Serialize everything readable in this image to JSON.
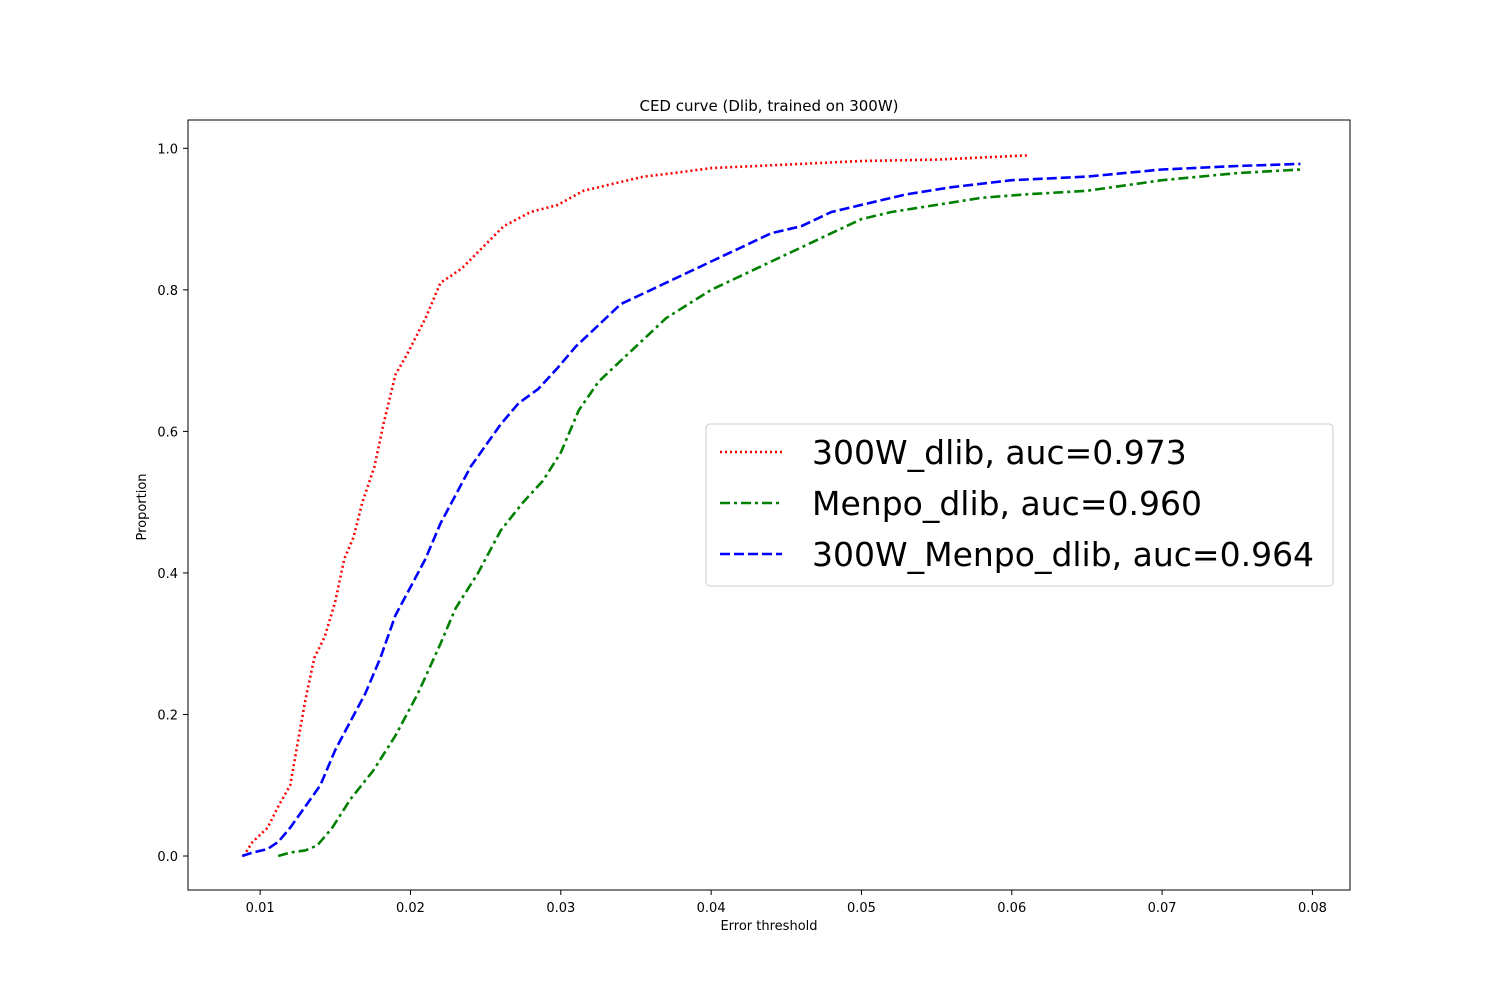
{
  "chart_data": {
    "type": "line",
    "title": "CED curve (Dlib, trained on 300W)",
    "xlabel": "Error threshold",
    "ylabel": "Proportion",
    "xlim": [
      0.0052,
      0.0825
    ],
    "ylim": [
      -0.048,
      1.04
    ],
    "x_ticks": [
      0.01,
      0.02,
      0.03,
      0.04,
      0.05,
      0.06,
      0.07,
      0.08
    ],
    "x_tick_labels": [
      "0.01",
      "0.02",
      "0.03",
      "0.04",
      "0.05",
      "0.06",
      "0.07",
      "0.08"
    ],
    "y_ticks": [
      0.0,
      0.2,
      0.4,
      0.6,
      0.8,
      1.0
    ],
    "y_tick_labels": [
      "0.0",
      "0.2",
      "0.4",
      "0.6",
      "0.8",
      "1.0"
    ],
    "grid": false,
    "legend_position": "center-right",
    "series": [
      {
        "name": "300W_dlib, auc=0.973",
        "color": "#ff0000",
        "style": "dotted",
        "x": [
          0.0089,
          0.0095,
          0.0105,
          0.0112,
          0.012,
          0.0125,
          0.013,
          0.0136,
          0.0143,
          0.015,
          0.0156,
          0.0162,
          0.0168,
          0.0176,
          0.0182,
          0.019,
          0.0198,
          0.021,
          0.022,
          0.0234,
          0.0248,
          0.0262,
          0.028,
          0.0298,
          0.0315,
          0.0335,
          0.0355,
          0.0375,
          0.04,
          0.043,
          0.046,
          0.05,
          0.055,
          0.061
        ],
        "y": [
          0.0,
          0.02,
          0.04,
          0.07,
          0.1,
          0.16,
          0.22,
          0.28,
          0.31,
          0.36,
          0.42,
          0.45,
          0.5,
          0.55,
          0.61,
          0.68,
          0.71,
          0.76,
          0.81,
          0.83,
          0.86,
          0.89,
          0.91,
          0.92,
          0.94,
          0.95,
          0.96,
          0.965,
          0.972,
          0.975,
          0.978,
          0.982,
          0.984,
          0.99
        ]
      },
      {
        "name": "Menpo_dlib, auc=0.960",
        "color": "#008000",
        "style": "dashdot",
        "x": [
          0.0112,
          0.012,
          0.013,
          0.0138,
          0.0148,
          0.016,
          0.0175,
          0.019,
          0.0205,
          0.022,
          0.023,
          0.0245,
          0.026,
          0.0275,
          0.0288,
          0.03,
          0.0312,
          0.0325,
          0.034,
          0.0355,
          0.037,
          0.0385,
          0.04,
          0.042,
          0.044,
          0.046,
          0.048,
          0.05,
          0.052,
          0.055,
          0.058,
          0.061,
          0.065,
          0.07,
          0.075,
          0.0792
        ],
        "y": [
          0.0,
          0.005,
          0.008,
          0.015,
          0.04,
          0.08,
          0.12,
          0.17,
          0.23,
          0.3,
          0.35,
          0.4,
          0.46,
          0.5,
          0.53,
          0.57,
          0.63,
          0.67,
          0.7,
          0.73,
          0.76,
          0.78,
          0.8,
          0.82,
          0.84,
          0.86,
          0.88,
          0.9,
          0.91,
          0.92,
          0.93,
          0.935,
          0.94,
          0.955,
          0.965,
          0.97
        ]
      },
      {
        "name": "300W_Menpo_dlib, auc=0.964",
        "color": "#0000ff",
        "style": "dashed",
        "x": [
          0.0088,
          0.0095,
          0.0105,
          0.0112,
          0.012,
          0.013,
          0.014,
          0.015,
          0.016,
          0.017,
          0.018,
          0.019,
          0.02,
          0.021,
          0.022,
          0.023,
          0.024,
          0.025,
          0.026,
          0.0272,
          0.0285,
          0.0298,
          0.031,
          0.0325,
          0.034,
          0.036,
          0.038,
          0.04,
          0.042,
          0.044,
          0.046,
          0.048,
          0.05,
          0.053,
          0.056,
          0.06,
          0.065,
          0.07,
          0.075,
          0.0792
        ],
        "y": [
          0.0,
          0.005,
          0.01,
          0.02,
          0.04,
          0.07,
          0.1,
          0.15,
          0.19,
          0.23,
          0.28,
          0.34,
          0.38,
          0.42,
          0.47,
          0.51,
          0.55,
          0.58,
          0.61,
          0.64,
          0.66,
          0.69,
          0.72,
          0.75,
          0.78,
          0.8,
          0.82,
          0.84,
          0.86,
          0.88,
          0.89,
          0.91,
          0.92,
          0.935,
          0.945,
          0.955,
          0.96,
          0.97,
          0.975,
          0.978
        ]
      }
    ]
  }
}
